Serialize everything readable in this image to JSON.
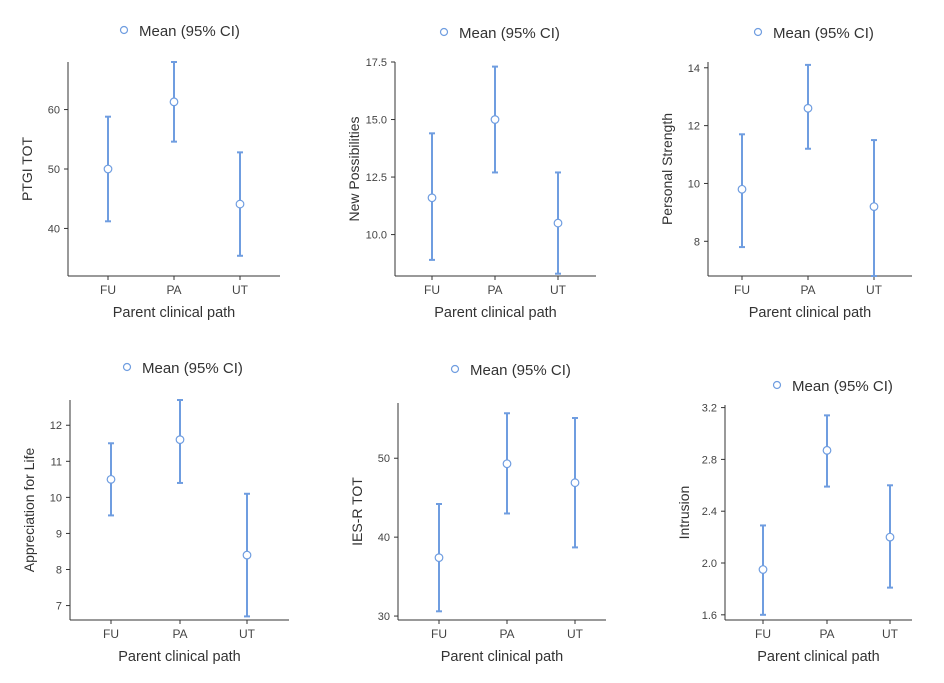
{
  "colors": {
    "series": "#6f9de0",
    "axis": "#333333",
    "text": "#333333",
    "tick_text": "#444444"
  },
  "chart_data": [
    {
      "type": "errorbar",
      "legend": "Mean (95% CI)",
      "legend_position": "top",
      "xlabel": "Parent clinical path",
      "ylabel": "PTGI TOT",
      "categories": [
        "FU",
        "PA",
        "UT"
      ],
      "ylim": [
        32,
        68
      ],
      "yticks": [
        40,
        50,
        60
      ],
      "mean": [
        50.0,
        61.3,
        44.1
      ],
      "lower": [
        41.2,
        54.6,
        35.4
      ],
      "upper": [
        58.8,
        68.0,
        52.8
      ],
      "grid": false
    },
    {
      "type": "errorbar",
      "legend": "Mean (95% CI)",
      "legend_position": "top",
      "xlabel": "Parent clinical path",
      "ylabel": "New Possibilities",
      "categories": [
        "FU",
        "PA",
        "UT"
      ],
      "ylim": [
        8.2,
        17.5
      ],
      "yticks": [
        10.0,
        12.5,
        15.0,
        17.5
      ],
      "ytick_labels": [
        "10.0",
        "12.5",
        "15.0",
        "17.5"
      ],
      "mean": [
        11.6,
        15.0,
        10.5
      ],
      "lower": [
        8.9,
        12.7,
        8.3
      ],
      "upper": [
        14.4,
        17.3,
        12.7
      ],
      "grid": false
    },
    {
      "type": "errorbar",
      "legend": "Mean (95% CI)",
      "legend_position": "top",
      "xlabel": "Parent clinical path",
      "ylabel": "Personal Strength",
      "categories": [
        "FU",
        "PA",
        "UT"
      ],
      "ylim": [
        6.8,
        14.2
      ],
      "yticks": [
        8,
        10,
        12,
        14
      ],
      "mean": [
        9.8,
        12.6,
        9.2
      ],
      "lower": [
        7.8,
        11.2,
        6.8
      ],
      "upper": [
        11.7,
        14.1,
        11.5
      ],
      "grid": false
    },
    {
      "type": "errorbar",
      "legend": "Mean (95% CI)",
      "legend_position": "top",
      "xlabel": "Parent clinical path",
      "ylabel": "Appreciation for Life",
      "categories": [
        "FU",
        "PA",
        "UT"
      ],
      "ylim": [
        6.6,
        12.7
      ],
      "yticks": [
        7,
        8,
        9,
        10,
        11,
        12
      ],
      "mean": [
        10.5,
        11.6,
        8.4
      ],
      "lower": [
        9.5,
        10.4,
        6.7
      ],
      "upper": [
        11.5,
        12.7,
        10.1
      ],
      "grid": false
    },
    {
      "type": "errorbar",
      "legend": "Mean (95% CI)",
      "legend_position": "top",
      "xlabel": "Parent clinical path",
      "ylabel": "IES-R TOT",
      "categories": [
        "FU",
        "PA",
        "UT"
      ],
      "ylim": [
        29.5,
        57
      ],
      "yticks": [
        30,
        40,
        50
      ],
      "mean": [
        37.4,
        49.3,
        46.9
      ],
      "lower": [
        30.6,
        43.0,
        38.7
      ],
      "upper": [
        44.2,
        55.7,
        55.1
      ],
      "grid": false
    },
    {
      "type": "errorbar",
      "legend": "Mean (95% CI)",
      "legend_position": "top",
      "xlabel": "Parent clinical path",
      "ylabel": "Intrusion",
      "categories": [
        "FU",
        "PA",
        "UT"
      ],
      "ylim": [
        1.56,
        3.22
      ],
      "yticks": [
        1.6,
        2.0,
        2.4,
        2.8,
        3.2
      ],
      "ytick_labels": [
        "1.6",
        "2.0",
        "2.4",
        "2.8",
        "3.2"
      ],
      "mean": [
        1.95,
        2.87,
        2.2
      ],
      "lower": [
        1.6,
        2.59,
        1.81
      ],
      "upper": [
        2.29,
        3.14,
        2.6
      ],
      "grid": false
    }
  ]
}
